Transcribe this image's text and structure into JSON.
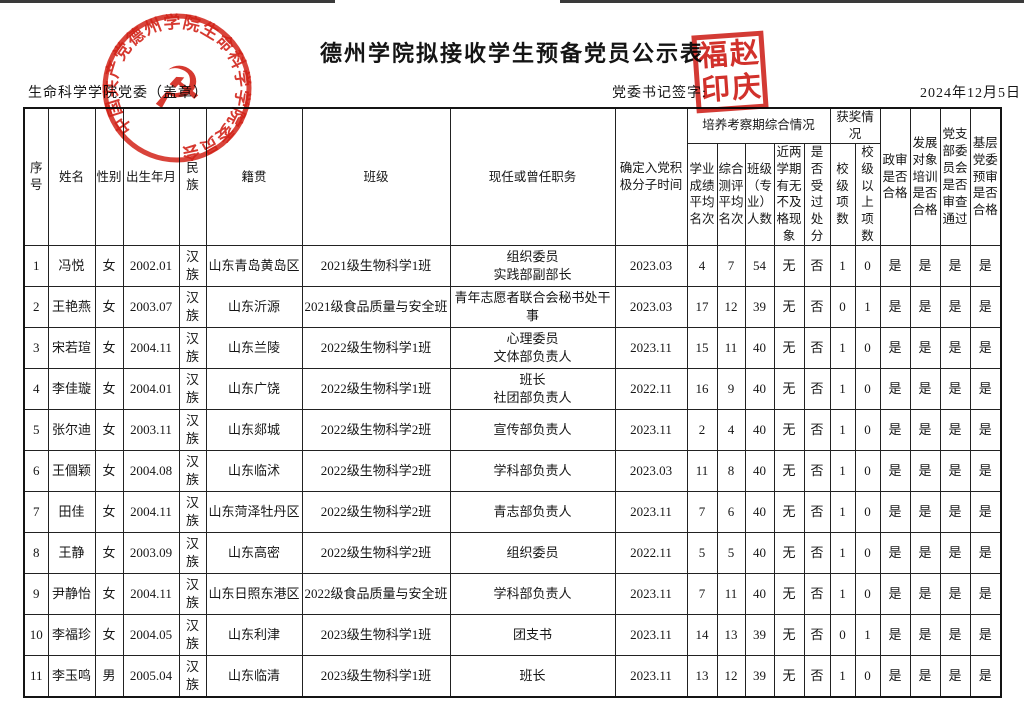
{
  "page": {
    "title": "德州学院拟接收学生预备党员公示表",
    "org_label": "生命科学学院党委（盖章）",
    "signature_label": "党委书记签字:",
    "date": "2024年12月5日"
  },
  "stamps": {
    "round_text": "中国共产党德州学院生命科学学院委员会",
    "round_center_icon": "hammer-sickle-icon",
    "square_reading": "赵庆福印",
    "square_chars": [
      "福",
      "赵",
      "印",
      "庆"
    ],
    "stamp_color": "#cd2019"
  },
  "table": {
    "col_keys": [
      "seq",
      "name",
      "gender",
      "birth",
      "ethnicity",
      "hometown",
      "class",
      "position",
      "activist_date",
      "academic_rank",
      "eval_rank",
      "class_size",
      "fail_record",
      "punishment",
      "school_awards",
      "above_school_awards",
      "political_review",
      "training_qualified",
      "branch_review",
      "committee_review"
    ],
    "headers": {
      "seq": "序号",
      "name": "姓名",
      "gender": "性别",
      "birth": "出生年月",
      "ethnicity": "民族",
      "hometown": "籍贯",
      "class": "班级",
      "position": "现任或曾任职务",
      "activist_date": "确定入党积极分子时间",
      "group_training": "培养考察期综合情况",
      "academic_rank": "学业成绩平均名次",
      "eval_rank": "综合测评平均名次",
      "class_size": "班级（专业）人数",
      "fail_record": "近两学期有无不及格现象",
      "punishment": "是否受过处分",
      "group_awards": "获奖情况",
      "school_awards": "校级项数",
      "above_school_awards": "校级以上项数",
      "political_review": "政审是否合格",
      "training_qualified": "发展对象培训是否合格",
      "branch_review": "党支部委员会是否审查通过",
      "committee_review": "基层党委预审是否合格"
    },
    "rows": [
      [
        "1",
        "冯悦",
        "女",
        "2002.01",
        "汉族",
        "山东青岛黄岛区",
        "2021级生物科学1班",
        "组织委员\n实践部副部长",
        "2023.03",
        "4",
        "7",
        "54",
        "无",
        "否",
        "1",
        "0",
        "是",
        "是",
        "是",
        "是"
      ],
      [
        "2",
        "王艳燕",
        "女",
        "2003.07",
        "汉族",
        "山东沂源",
        "2021级食品质量与安全班",
        "青年志愿者联合会秘书处干事",
        "2023.03",
        "17",
        "12",
        "39",
        "无",
        "否",
        "0",
        "1",
        "是",
        "是",
        "是",
        "是"
      ],
      [
        "3",
        "宋若瑄",
        "女",
        "2004.11",
        "汉族",
        "山东兰陵",
        "2022级生物科学1班",
        "心理委员\n文体部负责人",
        "2023.11",
        "15",
        "11",
        "40",
        "无",
        "否",
        "1",
        "0",
        "是",
        "是",
        "是",
        "是"
      ],
      [
        "4",
        "李佳璇",
        "女",
        "2004.01",
        "汉族",
        "山东广饶",
        "2022级生物科学1班",
        "班长\n社团部负责人",
        "2022.11",
        "16",
        "9",
        "40",
        "无",
        "否",
        "1",
        "0",
        "是",
        "是",
        "是",
        "是"
      ],
      [
        "5",
        "张尔迪",
        "女",
        "2003.11",
        "汉族",
        "山东郯城",
        "2022级生物科学2班",
        "宣传部负责人",
        "2023.11",
        "2",
        "4",
        "40",
        "无",
        "否",
        "1",
        "0",
        "是",
        "是",
        "是",
        "是"
      ],
      [
        "6",
        "王個颖",
        "女",
        "2004.08",
        "汉族",
        "山东临沭",
        "2022级生物科学2班",
        "学科部负责人",
        "2023.03",
        "11",
        "8",
        "40",
        "无",
        "否",
        "1",
        "0",
        "是",
        "是",
        "是",
        "是"
      ],
      [
        "7",
        "田佳",
        "女",
        "2004.11",
        "汉族",
        "山东菏泽牡丹区",
        "2022级生物科学2班",
        "青志部负责人",
        "2023.11",
        "7",
        "6",
        "40",
        "无",
        "否",
        "1",
        "0",
        "是",
        "是",
        "是",
        "是"
      ],
      [
        "8",
        "王静",
        "女",
        "2003.09",
        "汉族",
        "山东高密",
        "2022级生物科学2班",
        "组织委员",
        "2022.11",
        "5",
        "5",
        "40",
        "无",
        "否",
        "1",
        "0",
        "是",
        "是",
        "是",
        "是"
      ],
      [
        "9",
        "尹静怡",
        "女",
        "2004.11",
        "汉族",
        "山东日照东港区",
        "2022级食品质量与安全班",
        "学科部负责人",
        "2023.11",
        "7",
        "11",
        "40",
        "无",
        "否",
        "1",
        "0",
        "是",
        "是",
        "是",
        "是"
      ],
      [
        "10",
        "李福珍",
        "女",
        "2004.05",
        "汉族",
        "山东利津",
        "2023级生物科学1班",
        "团支书",
        "2023.11",
        "14",
        "13",
        "39",
        "无",
        "否",
        "0",
        "1",
        "是",
        "是",
        "是",
        "是"
      ],
      [
        "11",
        "李玉鸣",
        "男",
        "2005.04",
        "汉族",
        "山东临清",
        "2023级生物科学1班",
        "班长",
        "2023.11",
        "13",
        "12",
        "39",
        "无",
        "否",
        "1",
        "0",
        "是",
        "是",
        "是",
        "是"
      ]
    ]
  }
}
